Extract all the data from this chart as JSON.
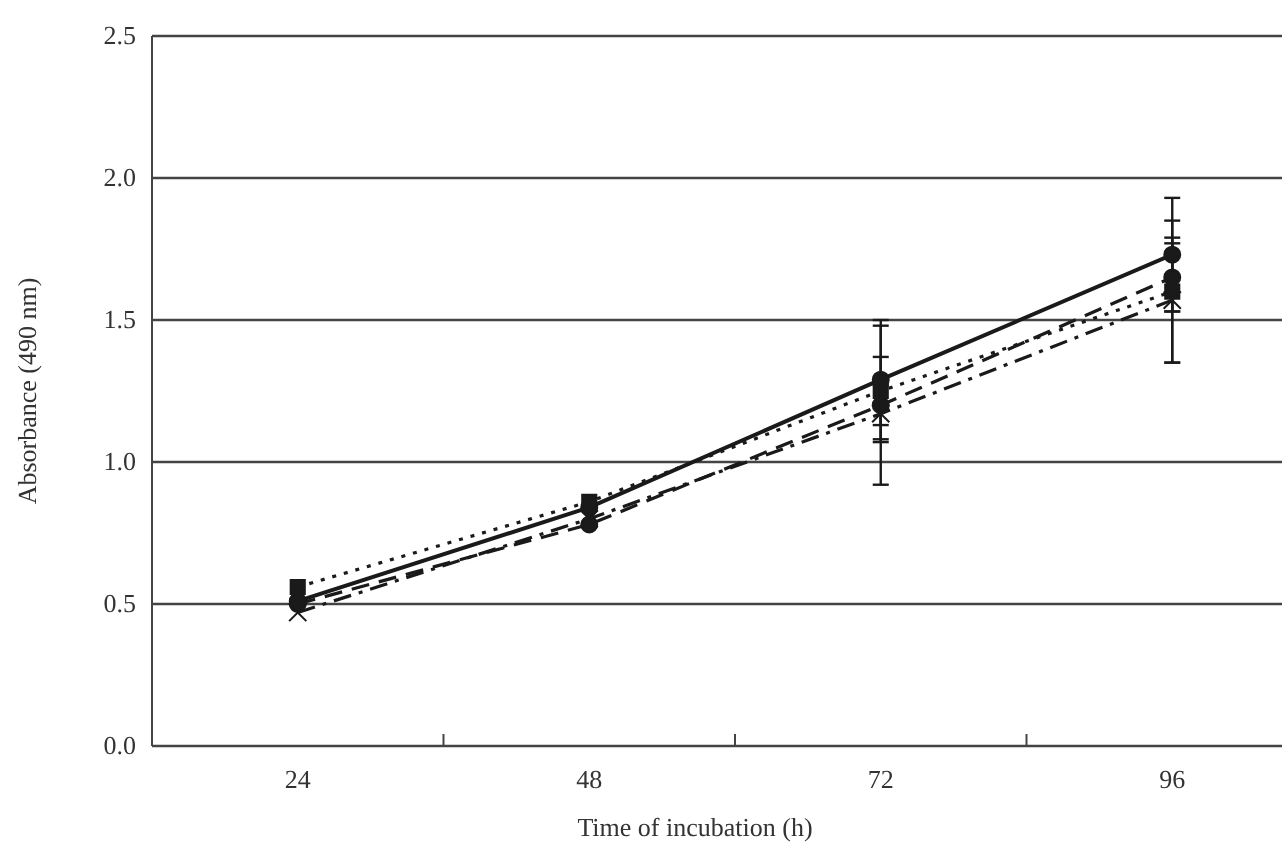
{
  "chart_data": {
    "type": "line",
    "xlabel": "Time of incubation (h)",
    "ylabel": "Absorbance (490 nm)",
    "categories": [
      "24",
      "48",
      "72",
      "96"
    ],
    "ylim": [
      0,
      2.5
    ],
    "yticks": [
      {
        "value": 0,
        "label": "0.0"
      },
      {
        "value": 0.5,
        "label": "0.5"
      },
      {
        "value": 1,
        "label": "1.0"
      },
      {
        "value": 1.5,
        "label": "1.5"
      },
      {
        "value": 2,
        "label": "2.0"
      },
      {
        "value": 2.5,
        "label": "2.5"
      }
    ],
    "grid": "y",
    "series": [
      {
        "color": "#1a1a1a",
        "line_style": "solid",
        "marker": "circle",
        "values": [
          0.51,
          0.84,
          1.29,
          1.73
        ],
        "errors": [
          null,
          null,
          0.21,
          0.2
        ]
      },
      {
        "color": "#1a1a1a",
        "line_style": "dotted",
        "marker": "square",
        "values": [
          0.56,
          0.86,
          1.25,
          1.6
        ],
        "errors": [
          null,
          null,
          0.12,
          0.25
        ]
      },
      {
        "color": "#1a1a1a",
        "line_style": "dashed",
        "marker": "circle",
        "values": [
          0.5,
          0.78,
          1.2,
          1.65
        ],
        "errors": [
          null,
          null,
          0.28,
          0.12
        ]
      },
      {
        "color": "#1a1a1a",
        "line_style": "dashdot",
        "marker": "cross",
        "values": [
          0.47,
          0.8,
          1.17,
          1.57
        ],
        "errors": [
          null,
          null,
          0.1,
          0.22
        ]
      }
    ]
  }
}
